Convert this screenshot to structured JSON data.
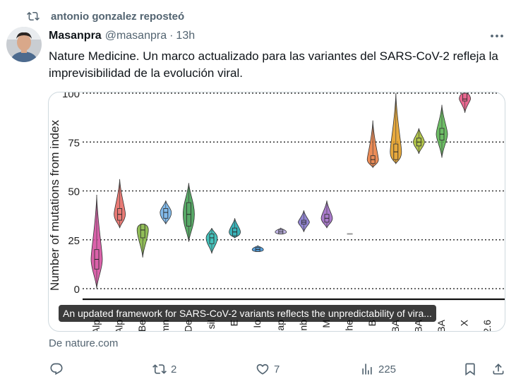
{
  "repost": {
    "text": "antonio gonzalez reposteó",
    "icon": "repost-icon"
  },
  "author": {
    "name": "Masanpra",
    "handle": "@masanpra",
    "separator": "·",
    "time": "13h"
  },
  "tweet": {
    "text": "Nature Medicine. Un marco actualizado para las variantes del SARS-CoV-2 refleja la imprevisibilidad de la evolución viral."
  },
  "card": {
    "caption": "An updated framework for SARS-CoV-2 variants reflects the unpredictability of vira...",
    "source": "De nature.com"
  },
  "actions": {
    "reply": {
      "icon": "reply-icon",
      "count": ""
    },
    "repost": {
      "icon": "repost-icon",
      "count": "2"
    },
    "like": {
      "icon": "heart-icon",
      "count": "7"
    },
    "views": {
      "icon": "views-icon",
      "count": "225"
    },
    "bookmark": {
      "icon": "bookmark-icon"
    },
    "share": {
      "icon": "share-icon"
    }
  },
  "chart_data": {
    "type": "violin",
    "ylabel": "Number of mutations from index",
    "yticks": [
      0,
      25,
      50,
      75,
      100
    ],
    "ylim": [
      0,
      100
    ],
    "grid": "horizontal dotted",
    "categories": [
      "Alp",
      "Alp",
      "Be",
      "mn",
      "De",
      "sil",
      "E",
      "Io",
      "ap",
      "nb",
      "M",
      "The",
      "B",
      "BA",
      "BA",
      "BA",
      "X",
      "2.6"
    ],
    "series": [
      {
        "median": 15,
        "q1": 10,
        "q3": 20,
        "min": 0,
        "max": 48,
        "color": "#d3479b"
      },
      {
        "median": 38,
        "q1": 35,
        "q3": 41,
        "min": 31,
        "max": 56,
        "color": "#e4635d"
      },
      {
        "median": 30,
        "q1": 26,
        "q3": 33,
        "min": 16,
        "max": 33,
        "color": "#7fb33b"
      },
      {
        "median": 39,
        "q1": 36,
        "q3": 41,
        "min": 33,
        "max": 45,
        "color": "#6caee8"
      },
      {
        "median": 38,
        "q1": 32,
        "q3": 44,
        "min": 24,
        "max": 54,
        "color": "#3b9a4c"
      },
      {
        "median": 26,
        "q1": 23,
        "q3": 28,
        "min": 18,
        "max": 31,
        "color": "#25b8b0"
      },
      {
        "median": 29,
        "q1": 27,
        "q3": 31,
        "min": 26,
        "max": 36,
        "color": "#19a6ad"
      },
      {
        "median": 20,
        "q1": 19,
        "q3": 21,
        "min": 19,
        "max": 22,
        "color": "#3a8fd6"
      },
      {
        "median": 29,
        "q1": 28,
        "q3": 30,
        "min": 28,
        "max": 31,
        "color": "#b5a8e2"
      },
      {
        "median": 34,
        "q1": 33,
        "q3": 35,
        "min": 29,
        "max": 40,
        "color": "#7e6fc8"
      },
      {
        "median": 36,
        "q1": 34,
        "q3": 38,
        "min": 31,
        "max": 45,
        "color": "#9a63c2"
      },
      {
        "median": 28,
        "q1": 28,
        "q3": 28,
        "min": 28,
        "max": 28,
        "color": "#999999"
      },
      {
        "median": 66,
        "q1": 64,
        "q3": 68,
        "min": 62,
        "max": 86,
        "color": "#e7783a"
      },
      {
        "median": 70,
        "q1": 66,
        "q3": 74,
        "min": 64,
        "max": 100,
        "color": "#e39a1b"
      },
      {
        "median": 75,
        "q1": 73,
        "q3": 77,
        "min": 69,
        "max": 82,
        "color": "#a3ba2d"
      },
      {
        "median": 79,
        "q1": 76,
        "q3": 82,
        "min": 67,
        "max": 94,
        "color": "#54b14a"
      },
      {
        "median": 97,
        "q1": 96,
        "q3": 100,
        "min": 90,
        "max": 100,
        "color": "#e44e7c"
      },
      {
        "median": null,
        "q1": null,
        "q3": null,
        "min": null,
        "max": null,
        "color": "#888888"
      }
    ]
  }
}
